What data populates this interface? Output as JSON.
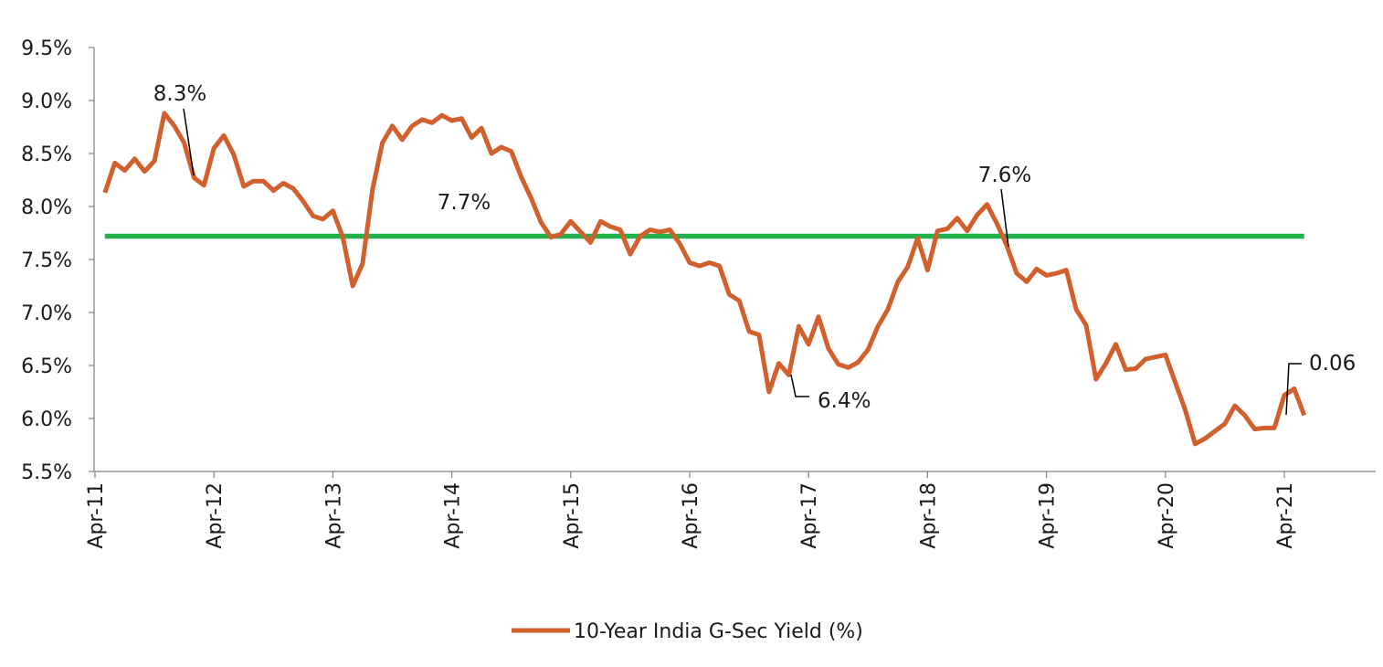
{
  "chart_data": {
    "type": "line",
    "title": "",
    "xlabel": "",
    "ylabel": "",
    "ylim": [
      5.5,
      9.5
    ],
    "y_ticks": [
      "5.5%",
      "6.0%",
      "6.5%",
      "7.0%",
      "7.5%",
      "8.0%",
      "8.5%",
      "9.0%",
      "9.5%"
    ],
    "x_ticks": [
      "Apr-11",
      "Apr-12",
      "Apr-13",
      "Apr-14",
      "Apr-15",
      "Apr-16",
      "Apr-17",
      "Apr-18",
      "Apr-19",
      "Apr-20",
      "Apr-21"
    ],
    "x_range_months": [
      "2011-04",
      "2021-12"
    ],
    "grid": false,
    "legend": "bottom-center",
    "series": [
      {
        "name": "10-Year India G-Sec Yield (%)",
        "color": "#d2602c",
        "points": [
          [
            "2011-05",
            8.13
          ],
          [
            "2011-06",
            8.41
          ],
          [
            "2011-07",
            8.34
          ],
          [
            "2011-08",
            8.45
          ],
          [
            "2011-09",
            8.33
          ],
          [
            "2011-10",
            8.43
          ],
          [
            "2011-11",
            8.88
          ],
          [
            "2011-12",
            8.76
          ],
          [
            "2012-01",
            8.6
          ],
          [
            "2012-02",
            8.27
          ],
          [
            "2012-03",
            8.2
          ],
          [
            "2012-04",
            8.55
          ],
          [
            "2012-05",
            8.67
          ],
          [
            "2012-06",
            8.49
          ],
          [
            "2012-07",
            8.19
          ],
          [
            "2012-08",
            8.24
          ],
          [
            "2012-09",
            8.24
          ],
          [
            "2012-10",
            8.15
          ],
          [
            "2012-11",
            8.22
          ],
          [
            "2012-12",
            8.17
          ],
          [
            "2013-01",
            8.05
          ],
          [
            "2013-02",
            7.91
          ],
          [
            "2013-03",
            7.88
          ],
          [
            "2013-04",
            7.96
          ],
          [
            "2013-05",
            7.71
          ],
          [
            "2013-06",
            7.25
          ],
          [
            "2013-07",
            7.46
          ],
          [
            "2013-08",
            8.16
          ],
          [
            "2013-09",
            8.6
          ],
          [
            "2013-10",
            8.76
          ],
          [
            "2013-11",
            8.63
          ],
          [
            "2013-12",
            8.76
          ],
          [
            "2014-01",
            8.82
          ],
          [
            "2014-02",
            8.79
          ],
          [
            "2014-03",
            8.86
          ],
          [
            "2014-04",
            8.81
          ],
          [
            "2014-05",
            8.83
          ],
          [
            "2014-06",
            8.65
          ],
          [
            "2014-07",
            8.74
          ],
          [
            "2014-08",
            8.5
          ],
          [
            "2014-09",
            8.56
          ],
          [
            "2014-10",
            8.52
          ],
          [
            "2014-11",
            8.28
          ],
          [
            "2014-12",
            8.08
          ],
          [
            "2015-01",
            7.85
          ],
          [
            "2015-02",
            7.71
          ],
          [
            "2015-03",
            7.74
          ],
          [
            "2015-04",
            7.86
          ],
          [
            "2015-05",
            7.76
          ],
          [
            "2015-06",
            7.66
          ],
          [
            "2015-07",
            7.86
          ],
          [
            "2015-08",
            7.81
          ],
          [
            "2015-09",
            7.78
          ],
          [
            "2015-10",
            7.55
          ],
          [
            "2015-11",
            7.72
          ],
          [
            "2015-12",
            7.78
          ],
          [
            "2016-01",
            7.76
          ],
          [
            "2016-02",
            7.78
          ],
          [
            "2016-03",
            7.65
          ],
          [
            "2016-04",
            7.47
          ],
          [
            "2016-05",
            7.44
          ],
          [
            "2016-06",
            7.47
          ],
          [
            "2016-07",
            7.44
          ],
          [
            "2016-08",
            7.17
          ],
          [
            "2016-09",
            7.11
          ],
          [
            "2016-10",
            6.82
          ],
          [
            "2016-11",
            6.79
          ],
          [
            "2016-12",
            6.25
          ],
          [
            "2017-01",
            6.52
          ],
          [
            "2017-02",
            6.41
          ],
          [
            "2017-03",
            6.87
          ],
          [
            "2017-04",
            6.7
          ],
          [
            "2017-05",
            6.96
          ],
          [
            "2017-06",
            6.66
          ],
          [
            "2017-07",
            6.51
          ],
          [
            "2017-08",
            6.48
          ],
          [
            "2017-09",
            6.53
          ],
          [
            "2017-10",
            6.65
          ],
          [
            "2017-11",
            6.87
          ],
          [
            "2017-12",
            7.03
          ],
          [
            "2018-01",
            7.29
          ],
          [
            "2018-02",
            7.43
          ],
          [
            "2018-03",
            7.7
          ],
          [
            "2018-04",
            7.4
          ],
          [
            "2018-05",
            7.77
          ],
          [
            "2018-06",
            7.79
          ],
          [
            "2018-07",
            7.89
          ],
          [
            "2018-08",
            7.77
          ],
          [
            "2018-09",
            7.92
          ],
          [
            "2018-10",
            8.02
          ],
          [
            "2018-11",
            7.84
          ],
          [
            "2018-12",
            7.63
          ],
          [
            "2019-01",
            7.37
          ],
          [
            "2019-02",
            7.29
          ],
          [
            "2019-03",
            7.41
          ],
          [
            "2019-04",
            7.35
          ],
          [
            "2019-05",
            7.37
          ],
          [
            "2019-06",
            7.4
          ],
          [
            "2019-07",
            7.03
          ],
          [
            "2019-08",
            6.88
          ],
          [
            "2019-09",
            6.37
          ],
          [
            "2019-10",
            6.52
          ],
          [
            "2019-11",
            6.7
          ],
          [
            "2019-12",
            6.46
          ],
          [
            "2020-01",
            6.47
          ],
          [
            "2020-02",
            6.56
          ],
          [
            "2020-03",
            6.58
          ],
          [
            "2020-04",
            6.6
          ],
          [
            "2020-05",
            6.34
          ],
          [
            "2020-06",
            6.08
          ],
          [
            "2020-07",
            5.76
          ],
          [
            "2020-08",
            5.81
          ],
          [
            "2020-09",
            5.88
          ],
          [
            "2020-10",
            5.95
          ],
          [
            "2020-11",
            6.12
          ],
          [
            "2020-12",
            6.03
          ],
          [
            "2021-01",
            5.9
          ],
          [
            "2021-02",
            5.91
          ],
          [
            "2021-03",
            5.91
          ],
          [
            "2021-04",
            6.22
          ],
          [
            "2021-05",
            6.28
          ],
          [
            "2021-06",
            6.03
          ]
        ]
      },
      {
        "name": "",
        "color": "#22b14c",
        "points": [
          [
            "2011-05",
            7.72
          ],
          [
            "2021-06",
            7.72
          ]
        ]
      }
    ],
    "annotations": [
      {
        "text": "8.3%",
        "x": "2012-02",
        "y": 8.27
      },
      {
        "text": "7.7%",
        "x": "2014-05",
        "y": 7.72
      },
      {
        "text": "6.4%",
        "x": "2017-02",
        "y": 6.41
      },
      {
        "text": "7.6%",
        "x": "2018-12",
        "y": 7.63
      },
      {
        "text": "0.06",
        "x": "2021-06",
        "y": 6.03
      }
    ]
  }
}
